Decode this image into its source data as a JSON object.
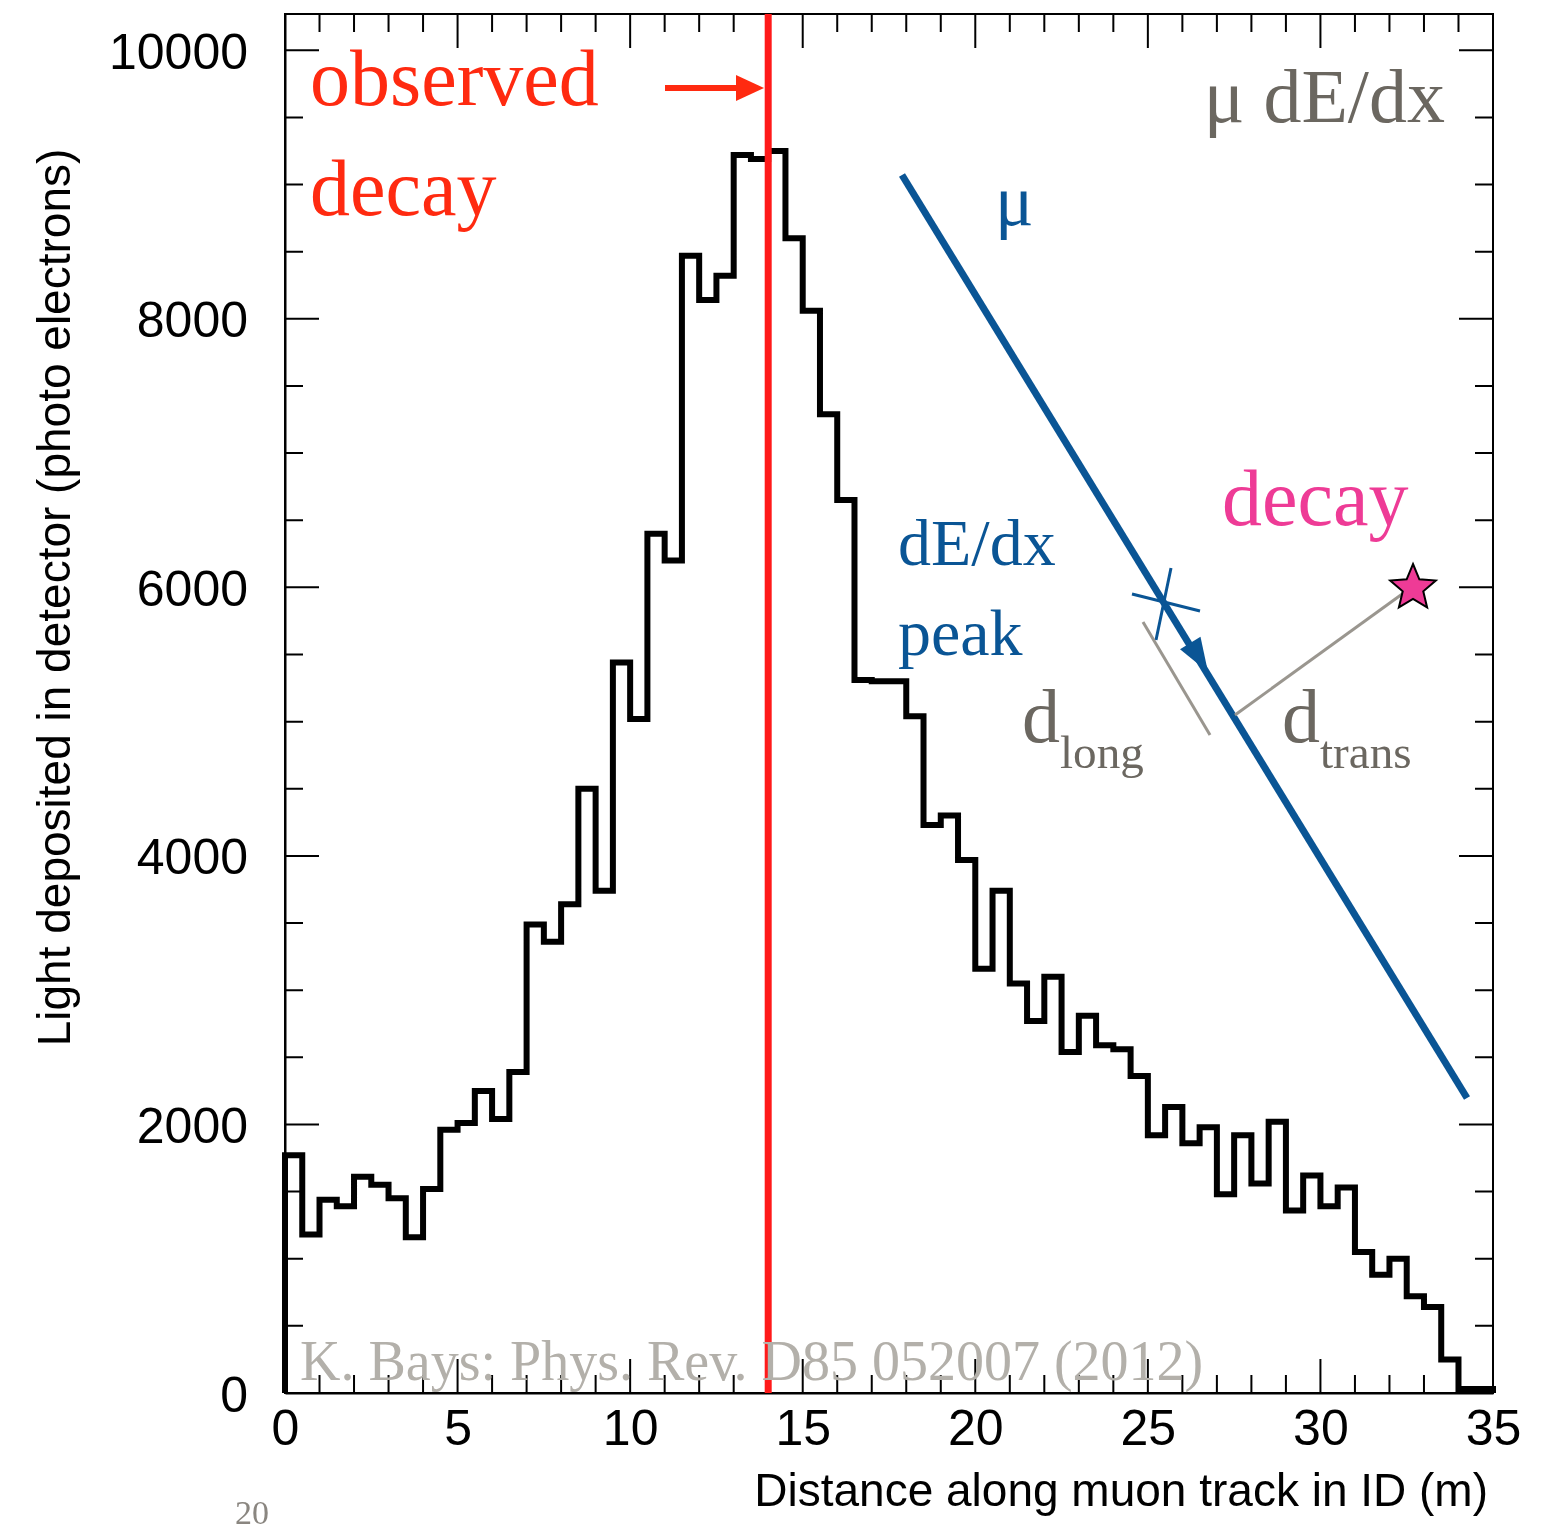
{
  "chart_data": {
    "type": "histogram",
    "xlabel": "Distance along muon track in ID (m)",
    "ylabel": "Light deposited in detector (photo electrons)",
    "bins": [
      0,
      0.5,
      1,
      1.5,
      2,
      2.5,
      3,
      3.5,
      4,
      4.5,
      5,
      5.5,
      6,
      6.5,
      7,
      7.5,
      8,
      8.5,
      9,
      9.5,
      10,
      10.5,
      11,
      11.5,
      12,
      12.5,
      13,
      13.5,
      14,
      14.5,
      15,
      15.5,
      16,
      16.5,
      17,
      17.5,
      18,
      18.5,
      19,
      19.5,
      20,
      20.5,
      21,
      21.5,
      22,
      22.5,
      23,
      23.5,
      24,
      24.5,
      25,
      25.5,
      26,
      26.5,
      27,
      27.5,
      28,
      28.5,
      29,
      29.5,
      30,
      30.5,
      31,
      31.5,
      32,
      32.5,
      33,
      33.5,
      34,
      34.5,
      35
    ],
    "values": [
      1770,
      1180,
      1440,
      1390,
      1610,
      1550,
      1450,
      1160,
      1520,
      1960,
      2010,
      2250,
      2040,
      2390,
      3490,
      3360,
      3640,
      4500,
      3740,
      5440,
      5020,
      6400,
      6200,
      8470,
      8140,
      8320,
      9220,
      9190,
      9250,
      8600,
      8060,
      7290,
      6650,
      5310,
      5300,
      5300,
      5040,
      4230,
      4300,
      3970,
      3160,
      3740,
      3050,
      2770,
      3100,
      2540,
      2810,
      2590,
      2560,
      2360,
      1920,
      2130,
      1860,
      1980,
      1480,
      1920,
      1560,
      2020,
      1360,
      1620,
      1390,
      1530,
      1050,
      880,
      1000,
      720,
      640,
      250,
      30,
      30
    ],
    "color": "#000000",
    "xlim": [
      0,
      35
    ],
    "ylim": [
      0,
      10270
    ],
    "xticks": [
      0,
      5,
      10,
      15,
      20,
      25,
      30,
      35
    ],
    "yticks": [
      0,
      2000,
      4000,
      6000,
      8000,
      10000
    ],
    "ref_lines": [
      {
        "axis": "x",
        "value": 14,
        "color": "#ff1a1a"
      }
    ],
    "annotations": [
      "observed decay",
      "μ dE/dx",
      "μ",
      "dE/dx peak",
      "decay",
      "d$_{long}$",
      "d$_{trans}$",
      "K. Bays: Phys. Rev. D85 052007 (2012)",
      "20"
    ]
  }
}
